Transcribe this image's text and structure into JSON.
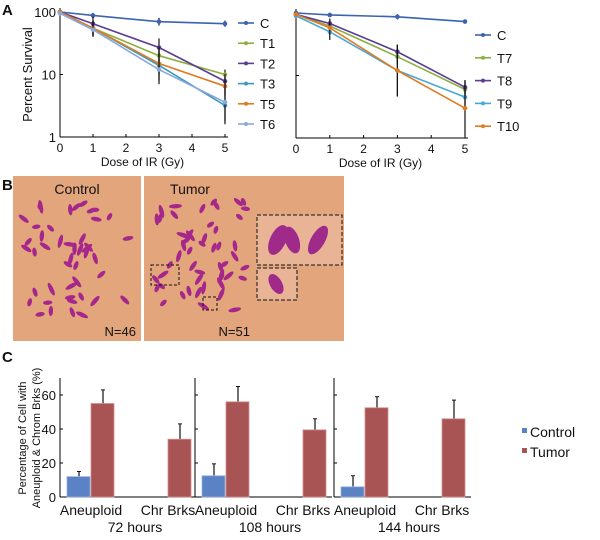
{
  "panel_labels": {
    "a": "A",
    "b": "B",
    "c": "C"
  },
  "chart_data": [
    {
      "type": "line",
      "panel": "A-left",
      "xlabel": "Dose of IR (Gy)",
      "ylabel": "Percent Survival",
      "yscale": "log",
      "ylim": [
        1,
        100
      ],
      "xlim": [
        0,
        5
      ],
      "xticks": [
        "0",
        "1",
        "2",
        "3",
        "4",
        "5"
      ],
      "yticks": [
        "1",
        "10",
        "100"
      ],
      "x": [
        0,
        1,
        3,
        5
      ],
      "legend_position": "right",
      "series": [
        {
          "name": "C",
          "color": "#3c63b0",
          "values": [
            100,
            88,
            70,
            65
          ],
          "err": [
            1.08,
            1.1,
            1.15,
            1.12
          ]
        },
        {
          "name": "T1",
          "color": "#8cb040",
          "values": [
            100,
            55,
            20,
            10
          ],
          "err": [
            1.05,
            1.3,
            1.4,
            1.2
          ]
        },
        {
          "name": "T2",
          "color": "#5a3c92",
          "values": [
            100,
            65,
            27,
            7.8
          ],
          "err": [
            1.05,
            1.3,
            1.4,
            1.3
          ]
        },
        {
          "name": "T3",
          "color": "#3a9ac0",
          "values": [
            100,
            55,
            14,
            3.2
          ],
          "err": [
            1.05,
            1.35,
            2.0,
            2.0
          ]
        },
        {
          "name": "T5",
          "color": "#e07b22",
          "values": [
            100,
            55,
            15,
            6.5
          ],
          "err": [
            1.05,
            1.3,
            1.5,
            1.4
          ]
        },
        {
          "name": "T6",
          "color": "#8aa8de",
          "values": [
            95,
            52,
            12,
            3.6
          ],
          "err": [
            1.05,
            1.3,
            1.5,
            2.0
          ]
        }
      ]
    },
    {
      "type": "line",
      "panel": "A-right",
      "xlabel": "Dose of IR (Gy)",
      "yscale": "log",
      "ylim": [
        1,
        100
      ],
      "xlim": [
        0,
        5
      ],
      "xticks": [
        "0",
        "1",
        "2",
        "3",
        "4",
        "5"
      ],
      "x": [
        0,
        1,
        3,
        5
      ],
      "legend_position": "right",
      "series": [
        {
          "name": "C",
          "color": "#3c63b0",
          "values": [
            100,
            93,
            87,
            73
          ],
          "err": [
            1.05,
            1.08,
            1.1,
            1.08
          ]
        },
        {
          "name": "T7",
          "color": "#8cb040",
          "values": [
            95,
            62,
            20,
            6
          ],
          "err": [
            1.05,
            1.2,
            1.3,
            1.3
          ]
        },
        {
          "name": "T8",
          "color": "#5a3c92",
          "values": [
            95,
            68,
            24,
            6.5
          ],
          "err": [
            1.05,
            1.2,
            1.3,
            1.3
          ]
        },
        {
          "name": "T9",
          "color": "#4aa8d8",
          "values": [
            90,
            50,
            12,
            4.5
          ],
          "err": [
            1.05,
            1.35,
            2.6,
            1.5
          ]
        },
        {
          "name": "T10",
          "color": "#e07b22",
          "values": [
            95,
            58,
            12,
            3
          ],
          "err": [
            1.05,
            1.3,
            2.6,
            2.8
          ]
        }
      ]
    },
    {
      "type": "bar",
      "panel": "C",
      "ylabel": "Percentage of Cell with Aneuploid & Chrom Brks (%)",
      "ylim": [
        0,
        70
      ],
      "yticks": [
        "0",
        "20",
        "40",
        "60"
      ],
      "categories": [
        "Aneuploid",
        "Chr Brks"
      ],
      "groups": [
        "72 hours",
        "108 hours",
        "144 hours"
      ],
      "legend_position": "right",
      "series": [
        {
          "name": "Control",
          "color": "#5b82c4",
          "values": [
            [
              12,
              0
            ],
            [
              12.5,
              0
            ],
            [
              6,
              0
            ]
          ],
          "err": [
            [
              3,
              0
            ],
            [
              7,
              0
            ],
            [
              6.5,
              0
            ]
          ]
        },
        {
          "name": "Tumor",
          "color": "#a85455",
          "values": [
            [
              55,
              34
            ],
            [
              56,
              39.5
            ],
            [
              52.5,
              46
            ]
          ],
          "err": [
            [
              8,
              9
            ],
            [
              9,
              6.5
            ],
            [
              6.5,
              11
            ]
          ]
        }
      ]
    }
  ],
  "karyotype": {
    "control_label": "Control",
    "tumor_label": "Tumor",
    "control_count": "N=46",
    "tumor_count": "N=51"
  }
}
